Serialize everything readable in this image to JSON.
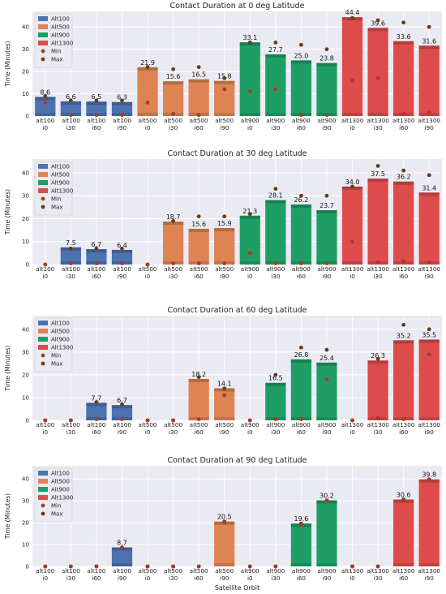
{
  "colors": {
    "alt100": "#4C72B0",
    "alt500": "#DD8452",
    "alt900": "#1E9E65",
    "alt1300": "#DD4B4B",
    "min_dot": "#A83B27",
    "max_dot": "#6B3A14",
    "plot_bg": "#EAEAF2",
    "grid": "#ffffff"
  },
  "chart_data": [
    {
      "type": "bar",
      "title": "Contact Duration  at 0 deg Latitude",
      "xlabel": "",
      "ylabel": "Time (Minutes)",
      "ylim": [
        0,
        47
      ],
      "yticks": [
        0,
        10,
        20,
        30,
        40
      ],
      "grid": true,
      "legend_position": "top-left",
      "categories": [
        "alt100 i0",
        "alt100 i30",
        "alt100 i60",
        "alt100 i90",
        "alt500 i0",
        "alt500 i30",
        "alt500 i60",
        "alt500 i90",
        "alt900 i0",
        "alt900 i30",
        "alt900 i60",
        "alt900 i90",
        "alt1300 i0",
        "alt1300 i30",
        "alt1300 i60",
        "alt1300 i90"
      ],
      "groups": [
        "Alt100",
        "Alt100",
        "Alt100",
        "Alt100",
        "Alt500",
        "Alt500",
        "Alt500",
        "Alt500",
        "Alt900",
        "Alt900",
        "Alt900",
        "Alt900",
        "Alt1300",
        "Alt1300",
        "Alt1300",
        "Alt1300"
      ],
      "values": [
        8.6,
        6.6,
        6.5,
        6.3,
        21.9,
        15.6,
        16.5,
        15.8,
        33.1,
        27.7,
        25.0,
        23.8,
        44.4,
        39.6,
        33.6,
        31.6
      ],
      "min": [
        6,
        0.5,
        0.5,
        0.5,
        6,
        1,
        0.5,
        12,
        11,
        12,
        0.5,
        0.5,
        16,
        17,
        1,
        1.5
      ],
      "max": [
        9,
        7,
        7,
        7,
        22,
        21,
        22,
        17,
        33,
        33,
        32,
        30,
        44,
        43,
        42,
        40
      ],
      "legend": [
        "Alt100",
        "Alt500",
        "Alt900",
        "Alt1300",
        "Min",
        "Max"
      ]
    },
    {
      "type": "bar",
      "title": "Contact Duration  at 30 deg Latitude",
      "xlabel": "",
      "ylabel": "Time (Minutes)",
      "ylim": [
        0,
        46
      ],
      "yticks": [
        0,
        10,
        20,
        30,
        40
      ],
      "grid": true,
      "legend_position": "top-left",
      "categories": [
        "alt100 i0",
        "alt100 i30",
        "alt100 i60",
        "alt100 i90",
        "alt500 i0",
        "alt500 i30",
        "alt500 i60",
        "alt500 i90",
        "alt900 i0",
        "alt900 i30",
        "alt900 i60",
        "alt900 i90",
        "alt1300 i0",
        "alt1300 i30",
        "alt1300 i60",
        "alt1300 i90"
      ],
      "groups": [
        "Alt100",
        "Alt100",
        "Alt100",
        "Alt100",
        "Alt500",
        "Alt500",
        "Alt500",
        "Alt500",
        "Alt900",
        "Alt900",
        "Alt900",
        "Alt900",
        "Alt1300",
        "Alt1300",
        "Alt1300",
        "Alt1300"
      ],
      "values": [
        0,
        7.5,
        6.7,
        6.4,
        0,
        18.7,
        15.6,
        15.9,
        21.3,
        28.1,
        26.2,
        23.7,
        34.0,
        37.5,
        36.2,
        31.4
      ],
      "labels_shown": [
        false,
        true,
        true,
        true,
        false,
        true,
        true,
        true,
        true,
        true,
        true,
        true,
        true,
        true,
        true,
        true
      ],
      "min": [
        0,
        0.5,
        0.5,
        0.5,
        0,
        0.5,
        0.5,
        0.5,
        5,
        0.5,
        0.5,
        0.5,
        10,
        1,
        1.5,
        1
      ],
      "max": [
        0,
        7,
        7,
        7,
        0,
        19,
        21,
        21,
        22,
        33,
        30,
        30,
        34,
        43,
        41,
        39
      ],
      "legend": [
        "Alt100",
        "Alt500",
        "Alt900",
        "Alt1300",
        "Min",
        "Max"
      ]
    },
    {
      "type": "bar",
      "title": "Contact Duration  at 60 deg Latitude",
      "xlabel": "",
      "ylabel": "Time (Minutes)",
      "ylim": [
        0,
        46
      ],
      "yticks": [
        0,
        10,
        20,
        30,
        40
      ],
      "grid": true,
      "legend_position": "top-left",
      "categories": [
        "alt100 i0",
        "alt100 i30",
        "alt100 i60",
        "alt100 i90",
        "alt500 i0",
        "alt500 i30",
        "alt500 i60",
        "alt500 i90",
        "alt900 i0",
        "alt900 i30",
        "alt900 i60",
        "alt900 i90",
        "alt1300 i0",
        "alt1300 i30",
        "alt1300 i60",
        "alt1300 i90"
      ],
      "groups": [
        "Alt100",
        "Alt100",
        "Alt100",
        "Alt100",
        "Alt500",
        "Alt500",
        "Alt500",
        "Alt500",
        "Alt900",
        "Alt900",
        "Alt900",
        "Alt900",
        "Alt1300",
        "Alt1300",
        "Alt1300",
        "Alt1300"
      ],
      "values": [
        0,
        0,
        7.7,
        6.7,
        0,
        0,
        18.2,
        14.1,
        0,
        16.5,
        26.8,
        25.4,
        0,
        26.3,
        35.2,
        35.5
      ],
      "labels_shown": [
        false,
        false,
        true,
        true,
        false,
        false,
        true,
        true,
        false,
        true,
        true,
        true,
        false,
        true,
        true,
        true
      ],
      "min": [
        0,
        0,
        0.5,
        0.5,
        0,
        0,
        0.5,
        11,
        0,
        0.5,
        0.5,
        18,
        0,
        1,
        0.5,
        29
      ],
      "max": [
        0,
        0,
        8,
        7,
        0,
        0,
        19,
        14,
        0,
        20,
        32,
        31,
        0,
        27,
        42,
        40
      ],
      "legend": [
        "Alt100",
        "Alt500",
        "Alt900",
        "Alt1300",
        "Min",
        "Max"
      ]
    },
    {
      "type": "bar",
      "title": "Contact Duration at 90 deg Latitude",
      "xlabel": "Satellite Orbit",
      "ylabel": "Time (Minutes)",
      "ylim": [
        0,
        46
      ],
      "yticks": [
        0,
        10,
        20,
        30,
        40
      ],
      "grid": true,
      "legend_position": "top-left",
      "categories": [
        "alt100 i0",
        "alt100 i30",
        "alt100 i60",
        "alt100 i90",
        "alt500 i0",
        "alt500 i30",
        "alt500 i60",
        "alt500 i90",
        "alt900 i0",
        "alt900 i30",
        "alt900 i60",
        "alt900 i90",
        "alt1300 i0",
        "alt1300 i30",
        "alt1300 i60",
        "alt1300 i90"
      ],
      "groups": [
        "Alt100",
        "Alt100",
        "Alt100",
        "Alt100",
        "Alt500",
        "Alt500",
        "Alt500",
        "Alt500",
        "Alt900",
        "Alt900",
        "Alt900",
        "Alt900",
        "Alt1300",
        "Alt1300",
        "Alt1300",
        "Alt1300"
      ],
      "values": [
        0,
        0,
        0,
        8.7,
        0,
        0,
        0,
        20.5,
        0,
        0,
        19.6,
        30.2,
        0,
        0,
        30.6,
        39.8
      ],
      "labels_shown": [
        false,
        false,
        false,
        true,
        false,
        false,
        false,
        true,
        false,
        false,
        true,
        true,
        false,
        false,
        true,
        true
      ],
      "min": [
        0,
        0,
        0,
        8.5,
        0,
        0,
        0,
        20,
        0,
        0,
        19,
        30,
        0,
        0,
        30,
        39.5
      ],
      "max": [
        0,
        0,
        0,
        8.7,
        0,
        0,
        0,
        20.5,
        0,
        0,
        19.6,
        30.2,
        0,
        0,
        30.6,
        39.8
      ],
      "legend": [
        "Alt100",
        "Alt500",
        "Alt900",
        "Alt1300",
        "Min",
        "Max"
      ]
    }
  ]
}
